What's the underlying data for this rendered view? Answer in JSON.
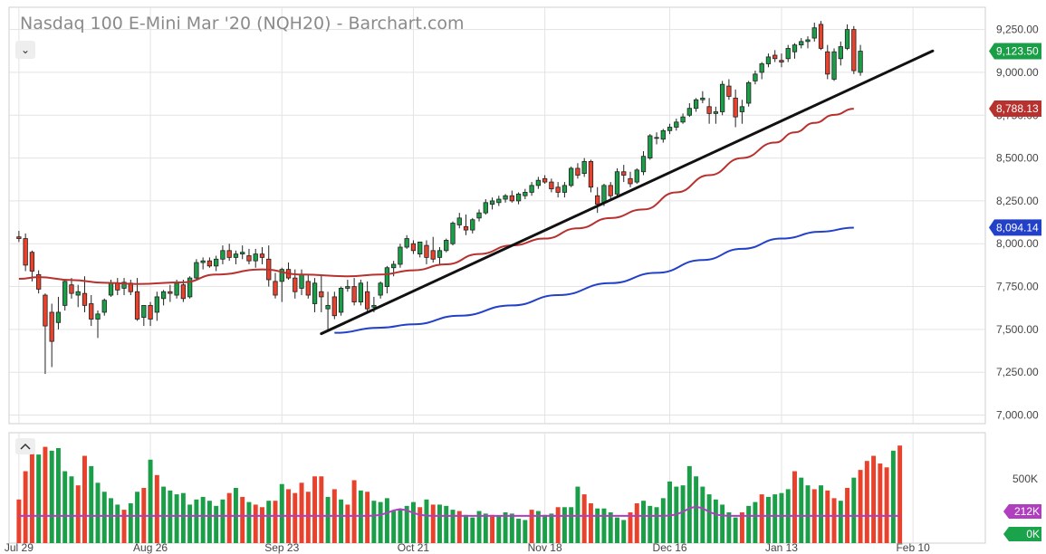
{
  "header": {
    "title": "Nasdaq 100 E-Mini Mar '20 (NQH20) - Barchart.com",
    "collapse_glyph": "⌄"
  },
  "colors": {
    "up": "#1a9e47",
    "down": "#e8412c",
    "ma50": "#b7322f",
    "ma200": "#2341c8",
    "volume_avg": "#b03fc0",
    "trendline": "#111111",
    "grid": "#e3e3e3",
    "price_tag": "#1a9e47",
    "ma50_tag": "#b7322f",
    "ma200_tag": "#2341c8",
    "vol_avg_tag": "#b03fc0",
    "vol_last_tag": "#1aa34a"
  },
  "chart_data": {
    "type": "candlestick",
    "title": "Nasdaq 100 E-Mini Mar '20 (NQH20) - Barchart.com",
    "y_ticks": [
      7000,
      7250,
      7500,
      7750,
      8000,
      8250,
      8500,
      8750,
      9000,
      9250
    ],
    "y_tick_labels": [
      "7,000.00",
      "7,250.00",
      "7,500.00",
      "7,750.00",
      "8,000.00",
      "8,250.00",
      "8,500.00",
      "8,750.00",
      "9,000.00",
      "9,250.00"
    ],
    "ylim": [
      6950,
      9380
    ],
    "x_ticks": [
      {
        "label": "Jul 29",
        "index": 0
      },
      {
        "label": "Aug 26",
        "index": 20
      },
      {
        "label": "Sep 23",
        "index": 40
      },
      {
        "label": "Oct 21",
        "index": 60
      },
      {
        "label": "Nov 18",
        "index": 80
      },
      {
        "label": "Dec 16",
        "index": 99
      },
      {
        "label": "Jan 13",
        "index": 116
      },
      {
        "label": "Feb 10",
        "index": 136
      }
    ],
    "x_range": [
      -1.5,
      147
    ],
    "ohlc": [
      [
        8040,
        8075,
        8010,
        8030
      ],
      [
        8030,
        8060,
        7840,
        7875
      ],
      [
        7950,
        7960,
        7780,
        7840
      ],
      [
        7820,
        7845,
        7710,
        7735
      ],
      [
        7700,
        7710,
        7240,
        7520
      ],
      [
        7600,
        7650,
        7280,
        7430
      ],
      [
        7540,
        7690,
        7500,
        7600
      ],
      [
        7640,
        7790,
        7610,
        7780
      ],
      [
        7760,
        7800,
        7680,
        7710
      ],
      [
        7700,
        7760,
        7630,
        7720
      ],
      [
        7710,
        7810,
        7600,
        7640
      ],
      [
        7650,
        7700,
        7520,
        7560
      ],
      [
        7560,
        7610,
        7450,
        7590
      ],
      [
        7600,
        7680,
        7580,
        7670
      ],
      [
        7700,
        7790,
        7690,
        7770
      ],
      [
        7770,
        7800,
        7700,
        7730
      ],
      [
        7740,
        7800,
        7700,
        7775
      ],
      [
        7770,
        7790,
        7700,
        7720
      ],
      [
        7720,
        7800,
        7550,
        7560
      ],
      [
        7570,
        7640,
        7520,
        7640
      ],
      [
        7640,
        7660,
        7520,
        7560
      ],
      [
        7600,
        7720,
        7550,
        7690
      ],
      [
        7680,
        7730,
        7640,
        7720
      ],
      [
        7720,
        7760,
        7660,
        7710
      ],
      [
        7700,
        7790,
        7680,
        7770
      ],
      [
        7760,
        7790,
        7660,
        7680
      ],
      [
        7690,
        7810,
        7680,
        7800
      ],
      [
        7800,
        7910,
        7790,
        7890
      ],
      [
        7890,
        7920,
        7850,
        7900
      ],
      [
        7900,
        7920,
        7860,
        7870
      ],
      [
        7870,
        7930,
        7840,
        7910
      ],
      [
        7910,
        7990,
        7880,
        7960
      ],
      [
        7960,
        8000,
        7900,
        7920
      ],
      [
        7920,
        7960,
        7880,
        7940
      ],
      [
        7940,
        7990,
        7910,
        7950
      ],
      [
        7930,
        7970,
        7880,
        7900
      ],
      [
        7900,
        7970,
        7860,
        7940
      ],
      [
        7940,
        7980,
        7880,
        7920
      ],
      [
        7910,
        7990,
        7750,
        7790
      ],
      [
        7780,
        7830,
        7680,
        7700
      ],
      [
        7780,
        7860,
        7660,
        7850
      ],
      [
        7850,
        7890,
        7790,
        7800
      ],
      [
        7800,
        7850,
        7680,
        7720
      ],
      [
        7740,
        7850,
        7700,
        7820
      ],
      [
        7780,
        7820,
        7680,
        7700
      ],
      [
        7650,
        7800,
        7600,
        7770
      ],
      [
        7720,
        7820,
        7600,
        7690
      ],
      [
        7620,
        7720,
        7500,
        7640
      ],
      [
        7690,
        7720,
        7560,
        7580
      ],
      [
        7600,
        7750,
        7580,
        7740
      ],
      [
        7740,
        7790,
        7720,
        7750
      ],
      [
        7750,
        7800,
        7640,
        7660
      ],
      [
        7660,
        7790,
        7640,
        7770
      ],
      [
        7720,
        7780,
        7600,
        7620
      ],
      [
        7630,
        7690,
        7600,
        7640
      ],
      [
        7700,
        7780,
        7680,
        7770
      ],
      [
        7750,
        7870,
        7710,
        7860
      ],
      [
        7860,
        7900,
        7810,
        7880
      ],
      [
        7880,
        8000,
        7860,
        7980
      ],
      [
        7980,
        8050,
        7970,
        8030
      ],
      [
        8000,
        8020,
        7940,
        7960
      ],
      [
        7940,
        8010,
        7920,
        8010
      ],
      [
        7990,
        8020,
        7880,
        7920
      ],
      [
        7960,
        8040,
        7890,
        7910
      ],
      [
        7920,
        7980,
        7880,
        7960
      ],
      [
        7960,
        8030,
        7950,
        8020
      ],
      [
        8000,
        8130,
        7990,
        8120
      ],
      [
        8110,
        8180,
        8090,
        8150
      ],
      [
        8100,
        8170,
        8050,
        8080
      ],
      [
        8080,
        8150,
        8060,
        8140
      ],
      [
        8150,
        8200,
        8130,
        8180
      ],
      [
        8180,
        8260,
        8170,
        8240
      ],
      [
        8230,
        8270,
        8200,
        8250
      ],
      [
        8240,
        8280,
        8220,
        8260
      ],
      [
        8260,
        8290,
        8240,
        8280
      ],
      [
        8280,
        8310,
        8240,
        8250
      ],
      [
        8250,
        8300,
        8230,
        8290
      ],
      [
        8280,
        8320,
        8260,
        8300
      ],
      [
        8300,
        8360,
        8280,
        8340
      ],
      [
        8340,
        8390,
        8320,
        8370
      ],
      [
        8380,
        8400,
        8350,
        8360
      ],
      [
        8360,
        8380,
        8300,
        8320
      ],
      [
        8330,
        8360,
        8270,
        8300
      ],
      [
        8300,
        8360,
        8270,
        8340
      ],
      [
        8340,
        8450,
        8330,
        8440
      ],
      [
        8440,
        8470,
        8380,
        8400
      ],
      [
        8410,
        8500,
        8390,
        8480
      ],
      [
        8480,
        8490,
        8300,
        8330
      ],
      [
        8280,
        8330,
        8180,
        8230
      ],
      [
        8240,
        8350,
        8220,
        8340
      ],
      [
        8340,
        8360,
        8260,
        8280
      ],
      [
        8290,
        8440,
        8270,
        8420
      ],
      [
        8420,
        8460,
        8360,
        8400
      ],
      [
        8380,
        8420,
        8330,
        8350
      ],
      [
        8360,
        8440,
        8350,
        8430
      ],
      [
        8420,
        8540,
        8400,
        8510
      ],
      [
        8500,
        8640,
        8490,
        8630
      ],
      [
        8620,
        8650,
        8580,
        8620
      ],
      [
        8610,
        8670,
        8590,
        8660
      ],
      [
        8660,
        8700,
        8640,
        8680
      ],
      [
        8680,
        8730,
        8660,
        8710
      ],
      [
        8710,
        8760,
        8700,
        8740
      ],
      [
        8750,
        8820,
        8740,
        8790
      ],
      [
        8790,
        8850,
        8770,
        8840
      ],
      [
        8840,
        8890,
        8820,
        8850
      ],
      [
        8800,
        8850,
        8700,
        8760
      ],
      [
        8760,
        8800,
        8700,
        8770
      ],
      [
        8770,
        8950,
        8750,
        8930
      ],
      [
        8920,
        8960,
        8840,
        8860
      ],
      [
        8850,
        8900,
        8680,
        8740
      ],
      [
        8770,
        8840,
        8700,
        8800
      ],
      [
        8820,
        8950,
        8800,
        8940
      ],
      [
        8950,
        9010,
        8930,
        8990
      ],
      [
        9000,
        9060,
        8960,
        9050
      ],
      [
        9050,
        9110,
        9030,
        9090
      ],
      [
        9100,
        9130,
        9060,
        9080
      ],
      [
        9070,
        9110,
        9030,
        9060
      ],
      [
        9080,
        9160,
        9060,
        9140
      ],
      [
        9120,
        9170,
        9080,
        9160
      ],
      [
        9160,
        9200,
        9140,
        9180
      ],
      [
        9180,
        9210,
        9140,
        9190
      ],
      [
        9200,
        9290,
        9180,
        9260
      ],
      [
        9280,
        9300,
        9130,
        9140
      ],
      [
        9120,
        9160,
        8960,
        8990
      ],
      [
        8960,
        9140,
        8950,
        9120
      ],
      [
        9080,
        9180,
        9040,
        9150
      ],
      [
        9140,
        9280,
        9130,
        9250
      ],
      [
        9250,
        9270,
        8990,
        9010
      ],
      [
        9000,
        9160,
        8980,
        9123.5
      ]
    ],
    "ma50": [
      {
        "i": 0,
        "v": 7795
      },
      {
        "i": 3,
        "v": 7805
      },
      {
        "i": 8,
        "v": 7788
      },
      {
        "i": 13,
        "v": 7772
      },
      {
        "i": 18,
        "v": 7765
      },
      {
        "i": 25,
        "v": 7775
      },
      {
        "i": 30,
        "v": 7820
      },
      {
        "i": 37,
        "v": 7850
      },
      {
        "i": 43,
        "v": 7820
      },
      {
        "i": 50,
        "v": 7810
      },
      {
        "i": 55,
        "v": 7820
      },
      {
        "i": 60,
        "v": 7845
      },
      {
        "i": 65,
        "v": 7880
      },
      {
        "i": 70,
        "v": 7940
      },
      {
        "i": 75,
        "v": 7990
      },
      {
        "i": 80,
        "v": 8030
      },
      {
        "i": 85,
        "v": 8090
      },
      {
        "i": 90,
        "v": 8150
      },
      {
        "i": 95,
        "v": 8200
      },
      {
        "i": 100,
        "v": 8300
      },
      {
        "i": 105,
        "v": 8400
      },
      {
        "i": 110,
        "v": 8500
      },
      {
        "i": 115,
        "v": 8590
      },
      {
        "i": 118,
        "v": 8650
      },
      {
        "i": 121,
        "v": 8705
      },
      {
        "i": 124,
        "v": 8752
      },
      {
        "i": 127,
        "v": 8788
      }
    ],
    "ma200": [
      {
        "i": 48,
        "v": 7480
      },
      {
        "i": 55,
        "v": 7510
      },
      {
        "i": 60,
        "v": 7530
      },
      {
        "i": 67,
        "v": 7580
      },
      {
        "i": 75,
        "v": 7640
      },
      {
        "i": 82,
        "v": 7700
      },
      {
        "i": 90,
        "v": 7770
      },
      {
        "i": 97,
        "v": 7830
      },
      {
        "i": 104,
        "v": 7905
      },
      {
        "i": 110,
        "v": 7970
      },
      {
        "i": 116,
        "v": 8030
      },
      {
        "i": 122,
        "v": 8070
      },
      {
        "i": 127,
        "v": 8094
      }
    ],
    "trendline": [
      {
        "i": 46,
        "v": 7475
      },
      {
        "i": 139,
        "v": 9125
      }
    ],
    "volume": [
      [
        340,
        "d"
      ],
      [
        560,
        "d"
      ],
      [
        720,
        "d"
      ],
      [
        690,
        "g"
      ],
      [
        750,
        "d"
      ],
      [
        720,
        "g"
      ],
      [
        740,
        "g"
      ],
      [
        560,
        "g"
      ],
      [
        520,
        "g"
      ],
      [
        450,
        "d"
      ],
      [
        680,
        "d"
      ],
      [
        600,
        "g"
      ],
      [
        470,
        "g"
      ],
      [
        400,
        "g"
      ],
      [
        350,
        "g"
      ],
      [
        300,
        "g"
      ],
      [
        260,
        "d"
      ],
      [
        310,
        "g"
      ],
      [
        400,
        "g"
      ],
      [
        430,
        "d"
      ],
      [
        650,
        "g"
      ],
      [
        530,
        "d"
      ],
      [
        440,
        "g"
      ],
      [
        410,
        "g"
      ],
      [
        380,
        "g"
      ],
      [
        390,
        "g"
      ],
      [
        300,
        "g"
      ],
      [
        340,
        "g"
      ],
      [
        360,
        "g"
      ],
      [
        330,
        "g"
      ],
      [
        290,
        "g"
      ],
      [
        340,
        "g"
      ],
      [
        390,
        "d"
      ],
      [
        430,
        "g"
      ],
      [
        360,
        "d"
      ],
      [
        320,
        "g"
      ],
      [
        300,
        "d"
      ],
      [
        280,
        "d"
      ],
      [
        330,
        "g"
      ],
      [
        330,
        "d"
      ],
      [
        460,
        "g"
      ],
      [
        420,
        "d"
      ],
      [
        390,
        "d"
      ],
      [
        470,
        "d"
      ],
      [
        400,
        "d"
      ],
      [
        520,
        "d"
      ],
      [
        520,
        "d"
      ],
      [
        360,
        "g"
      ],
      [
        420,
        "d"
      ],
      [
        340,
        "g"
      ],
      [
        300,
        "d"
      ],
      [
        490,
        "d"
      ],
      [
        410,
        "g"
      ],
      [
        400,
        "d"
      ],
      [
        330,
        "g"
      ],
      [
        320,
        "g"
      ],
      [
        350,
        "g"
      ],
      [
        250,
        "g"
      ],
      [
        260,
        "g"
      ],
      [
        290,
        "g"
      ],
      [
        320,
        "g"
      ],
      [
        280,
        "d"
      ],
      [
        340,
        "g"
      ],
      [
        300,
        "d"
      ],
      [
        300,
        "g"
      ],
      [
        290,
        "g"
      ],
      [
        260,
        "g"
      ],
      [
        250,
        "d"
      ],
      [
        220,
        "g"
      ],
      [
        200,
        "g"
      ],
      [
        250,
        "g"
      ],
      [
        230,
        "g"
      ],
      [
        220,
        "d"
      ],
      [
        210,
        "g"
      ],
      [
        240,
        "g"
      ],
      [
        230,
        "g"
      ],
      [
        190,
        "g"
      ],
      [
        180,
        "g"
      ],
      [
        260,
        "d"
      ],
      [
        250,
        "g"
      ],
      [
        220,
        "g"
      ],
      [
        230,
        "g"
      ],
      [
        280,
        "d"
      ],
      [
        280,
        "g"
      ],
      [
        280,
        "g"
      ],
      [
        440,
        "g"
      ],
      [
        380,
        "d"
      ],
      [
        310,
        "d"
      ],
      [
        270,
        "g"
      ],
      [
        270,
        "g"
      ],
      [
        240,
        "g"
      ],
      [
        200,
        "g"
      ],
      [
        180,
        "g"
      ],
      [
        240,
        "d"
      ],
      [
        310,
        "d"
      ],
      [
        330,
        "g"
      ],
      [
        290,
        "g"
      ],
      [
        280,
        "g"
      ],
      [
        350,
        "g"
      ],
      [
        480,
        "g"
      ],
      [
        440,
        "g"
      ],
      [
        450,
        "g"
      ],
      [
        600,
        "g"
      ],
      [
        520,
        "g"
      ],
      [
        440,
        "g"
      ],
      [
        380,
        "g"
      ],
      [
        340,
        "g"
      ],
      [
        300,
        "g"
      ],
      [
        240,
        "g"
      ],
      [
        200,
        "g"
      ],
      [
        240,
        "d"
      ],
      [
        290,
        "g"
      ],
      [
        320,
        "g"
      ],
      [
        380,
        "d"
      ],
      [
        360,
        "g"
      ],
      [
        380,
        "g"
      ],
      [
        390,
        "g"
      ],
      [
        420,
        "g"
      ],
      [
        560,
        "d"
      ],
      [
        510,
        "g"
      ],
      [
        450,
        "g"
      ],
      [
        420,
        "d"
      ],
      [
        450,
        "g"
      ],
      [
        410,
        "d"
      ],
      [
        350,
        "d"
      ],
      [
        330,
        "g"
      ],
      [
        430,
        "d"
      ],
      [
        510,
        "g"
      ],
      [
        570,
        "d"
      ],
      [
        640,
        "d"
      ],
      [
        680,
        "d"
      ],
      [
        620,
        "d"
      ],
      [
        590,
        "d"
      ],
      [
        720,
        "g"
      ],
      [
        760,
        "d"
      ]
    ],
    "volume_avg_base": 212,
    "volume_avg_bump": [
      {
        "i": 58,
        "v": 265
      },
      {
        "i": 103,
        "v": 285
      }
    ],
    "volume_ylim": [
      0,
      860
    ],
    "volume_tick": {
      "value": 500,
      "label": "500K"
    },
    "price_tags": [
      {
        "label": "9,123.50",
        "value": 9123.5,
        "color_key": "price_tag"
      },
      {
        "label": "8,788.13",
        "value": 8788.13,
        "color_key": "ma50_tag"
      },
      {
        "label": "8,094.14",
        "value": 8094.14,
        "color_key": "ma200_tag"
      }
    ],
    "volume_tags": [
      {
        "label": "212K",
        "value": 212,
        "color_key": "vol_avg_tag"
      },
      {
        "label": "0K",
        "value": 0,
        "color_key": "vol_last_tag"
      }
    ],
    "grid": true
  }
}
